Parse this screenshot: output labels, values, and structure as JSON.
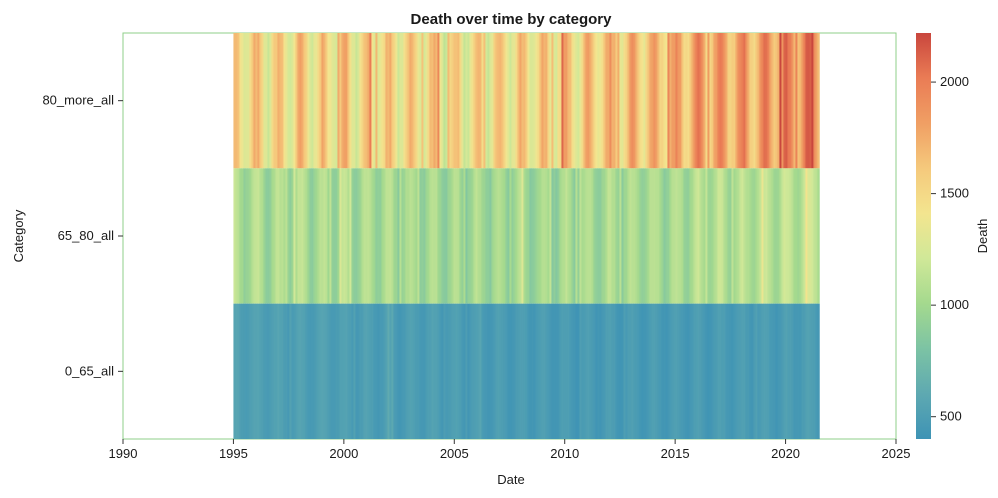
{
  "chart_data": {
    "type": "heatmap",
    "title": "Death over time by category",
    "xlabel": "Date",
    "ylabel": "Category",
    "xlim": [
      1990,
      2025
    ],
    "x_ticks": [
      1990,
      1995,
      2000,
      2005,
      2010,
      2015,
      2020,
      2025
    ],
    "data_range": [
      1995.0,
      2021.5
    ],
    "categories": [
      "80_more_all",
      "65_80_all",
      "0_65_all"
    ],
    "series": [
      {
        "name": "80_more_all",
        "base": [
          1500,
          1480,
          1470,
          1500,
          1460,
          1520,
          1490,
          1470,
          1460,
          1480,
          1440,
          1450,
          1460,
          1470,
          1480,
          1540,
          1520,
          1590,
          1620,
          1650,
          1680,
          1740,
          1760,
          1780,
          1820,
          1840,
          1880
        ]
      },
      {
        "name": "65_80_all",
        "base": [
          1060,
          1040,
          1020,
          1040,
          1010,
          1030,
          1020,
          1010,
          1000,
          1010,
          980,
          990,
          990,
          990,
          970,
          1000,
          990,
          1010,
          1010,
          1020,
          1030,
          1050,
          1060,
          1060,
          1080,
          1100,
          1150
        ]
      },
      {
        "name": "0_65_all",
        "base": [
          520,
          510,
          510,
          500,
          505,
          500,
          495,
          490,
          490,
          490,
          480,
          480,
          480,
          475,
          470,
          470,
          465,
          470,
          465,
          465,
          470,
          470,
          470,
          470,
          475,
          480,
          490
        ]
      }
    ],
    "colorbar": {
      "label": "Death",
      "range": [
        400,
        2220
      ],
      "ticks": [
        500,
        1000,
        1500,
        2000
      ],
      "colors": [
        "#3e93b5",
        "#5ea9b1",
        "#7cc3a4",
        "#a4d98e",
        "#d0e898",
        "#f3e58f",
        "#f5c97c",
        "#f09f64",
        "#ea7c55",
        "#c9463d"
      ]
    },
    "grid": false,
    "legend": "right colorbar"
  }
}
